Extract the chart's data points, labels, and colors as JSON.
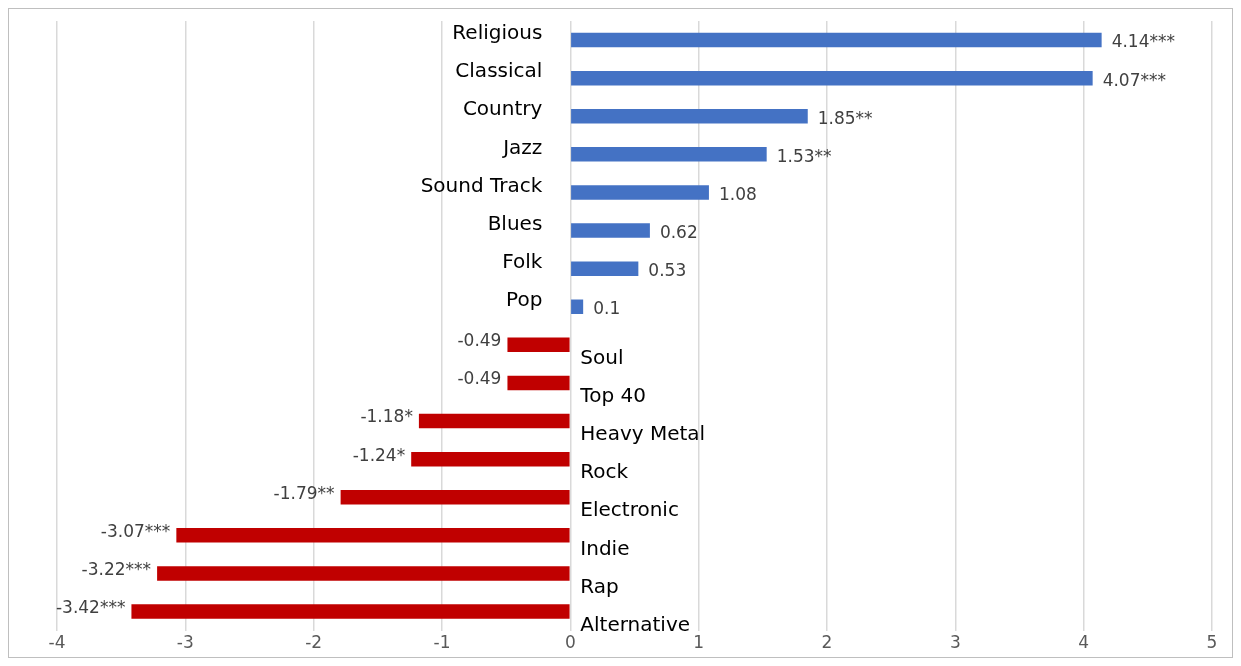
{
  "chart_data": {
    "type": "bar",
    "orientation": "horizontal",
    "categories": [
      "Religious",
      "Classical",
      "Country",
      "Jazz",
      "Sound Track",
      "Blues",
      "Folk",
      "Pop",
      "Soul",
      "Top 40",
      "Heavy Metal",
      "Rock",
      "Electronic",
      "Indie",
      "Rap",
      "Alternative"
    ],
    "values": [
      4.14,
      4.07,
      1.85,
      1.53,
      1.08,
      0.62,
      0.53,
      0.1,
      -0.49,
      -0.49,
      -1.18,
      -1.24,
      -1.79,
      -3.07,
      -3.22,
      -3.42
    ],
    "value_labels": [
      "4.14***",
      "4.07***",
      "1.85**",
      "1.53**",
      "1.08",
      "0.62",
      "0.53",
      "0.1",
      "-0.49",
      "-0.49",
      "-1.18*",
      "-1.24*",
      "-1.79**",
      "-3.07***",
      "-3.22***",
      "-3.42***"
    ],
    "colors": [
      "#4472c4",
      "#4472c4",
      "#4472c4",
      "#4472c4",
      "#4472c4",
      "#4472c4",
      "#4472c4",
      "#4472c4",
      "#c00000",
      "#c00000",
      "#c00000",
      "#c00000",
      "#c00000",
      "#c00000",
      "#c00000",
      "#c00000"
    ],
    "xlim": [
      -4,
      5
    ],
    "xticks": [
      -4,
      -3,
      -2,
      -1,
      0,
      1,
      2,
      3,
      4,
      5
    ],
    "grid": "x",
    "legend": false
  }
}
